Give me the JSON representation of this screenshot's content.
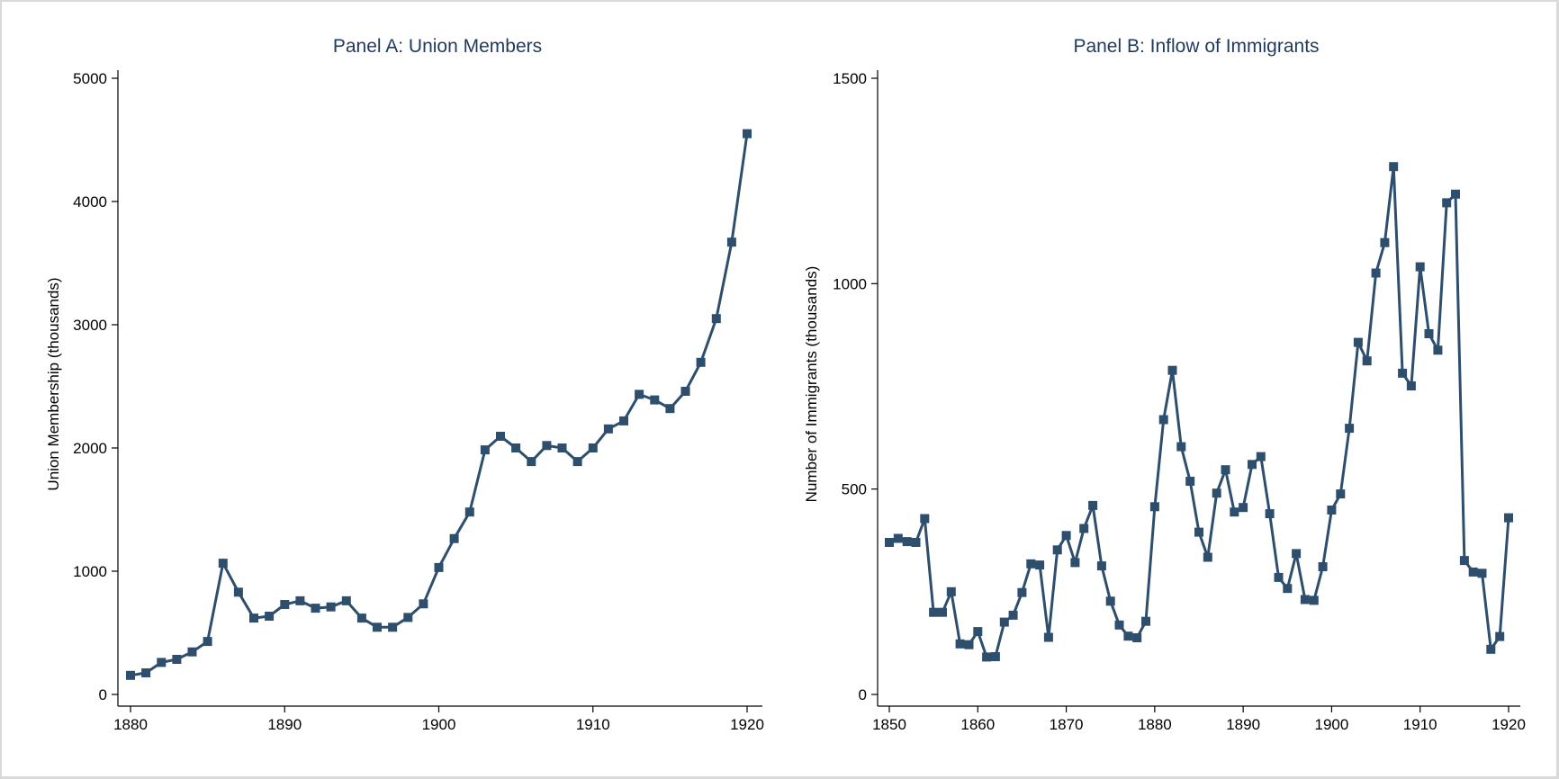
{
  "chart_data": [
    {
      "type": "line",
      "title": "Panel A: Union Members",
      "xlabel": "",
      "ylabel": "Union Membership (thousands)",
      "xlim": [
        1880,
        1920
      ],
      "ylim": [
        0,
        5000
      ],
      "xticks": [
        1880,
        1890,
        1900,
        1910,
        1920
      ],
      "yticks": [
        0,
        1000,
        2000,
        3000,
        4000,
        5000
      ],
      "marker": "square",
      "color": "#2e4e6e",
      "grid": false,
      "x": [
        1880,
        1881,
        1882,
        1883,
        1884,
        1885,
        1886,
        1887,
        1888,
        1889,
        1890,
        1891,
        1892,
        1893,
        1894,
        1895,
        1896,
        1897,
        1898,
        1899,
        1900,
        1901,
        1902,
        1903,
        1904,
        1905,
        1906,
        1907,
        1908,
        1909,
        1910,
        1911,
        1912,
        1913,
        1914,
        1915,
        1916,
        1917,
        1918,
        1919,
        1920
      ],
      "y": [
        155,
        175,
        260,
        285,
        345,
        430,
        1065,
        830,
        620,
        635,
        730,
        760,
        700,
        710,
        760,
        620,
        545,
        545,
        625,
        735,
        1030,
        1265,
        1480,
        1985,
        2095,
        2000,
        1890,
        2020,
        2000,
        1890,
        2000,
        2155,
        2220,
        2435,
        2390,
        2320,
        2460,
        2695,
        3050,
        3670,
        4550
      ]
    },
    {
      "type": "line",
      "title": "Panel B: Inflow of Immigrants",
      "xlabel": "",
      "ylabel": "Number of Immigrants (thousands)",
      "xlim": [
        1850,
        1920
      ],
      "ylim": [
        0,
        1500
      ],
      "xticks": [
        1850,
        1860,
        1870,
        1880,
        1890,
        1900,
        1910,
        1920
      ],
      "yticks": [
        0,
        500,
        1000,
        1500
      ],
      "marker": "square",
      "color": "#2e4e6e",
      "grid": false,
      "x": [
        1850,
        1851,
        1852,
        1853,
        1854,
        1855,
        1856,
        1857,
        1858,
        1859,
        1860,
        1861,
        1862,
        1863,
        1864,
        1865,
        1866,
        1867,
        1868,
        1869,
        1870,
        1871,
        1872,
        1873,
        1874,
        1875,
        1876,
        1877,
        1878,
        1879,
        1880,
        1881,
        1882,
        1883,
        1884,
        1885,
        1886,
        1887,
        1888,
        1889,
        1890,
        1891,
        1892,
        1893,
        1894,
        1895,
        1896,
        1897,
        1898,
        1899,
        1900,
        1901,
        1902,
        1903,
        1904,
        1905,
        1906,
        1907,
        1908,
        1909,
        1910,
        1911,
        1912,
        1913,
        1914,
        1915,
        1916,
        1917,
        1918,
        1919,
        1920
      ],
      "y": [
        370,
        380,
        372,
        370,
        428,
        200,
        200,
        250,
        123,
        121,
        153,
        91,
        92,
        176,
        193,
        248,
        318,
        315,
        139,
        352,
        387,
        321,
        404,
        460,
        313,
        227,
        169,
        142,
        138,
        178,
        457,
        669,
        789,
        603,
        519,
        395,
        334,
        490,
        547,
        444,
        455,
        560,
        579,
        440,
        285,
        258,
        343,
        231,
        229,
        311,
        449,
        488,
        648,
        857,
        812,
        1026,
        1100,
        1285,
        782,
        751,
        1041,
        878,
        838,
        1197,
        1218,
        326,
        298,
        295,
        110,
        141,
        430
      ]
    }
  ]
}
